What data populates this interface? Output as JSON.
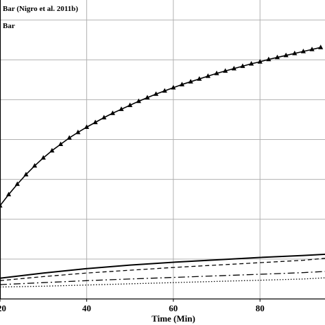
{
  "chart_data": {
    "type": "line",
    "xlabel": "Time (Min)",
    "ylabel": "",
    "xlim": [
      20,
      95
    ],
    "ylim": [
      0,
      7.5
    ],
    "x_ticks": [
      20,
      40,
      60,
      80
    ],
    "grid": true,
    "legend": {
      "placement": "top-left",
      "entries": [
        "Bar (Nigro et al. 2011b)",
        "Bar"
      ]
    },
    "series": [
      {
        "name": "Bar (Nigro et al. 2011b)",
        "style": "solid-triangle",
        "x": [
          20,
          22,
          24,
          26,
          28,
          30,
          32,
          34,
          36,
          38,
          40,
          42,
          44,
          46,
          48,
          50,
          52,
          54,
          56,
          58,
          60,
          62,
          64,
          66,
          68,
          70,
          72,
          74,
          76,
          78,
          80,
          82,
          84,
          86,
          88,
          90,
          92,
          94
        ],
        "y": [
          2.34,
          2.62,
          2.88,
          3.12,
          3.34,
          3.54,
          3.72,
          3.88,
          4.04,
          4.18,
          4.31,
          4.43,
          4.55,
          4.66,
          4.76,
          4.86,
          4.96,
          5.05,
          5.14,
          5.22,
          5.3,
          5.38,
          5.45,
          5.52,
          5.59,
          5.66,
          5.72,
          5.78,
          5.84,
          5.9,
          5.95,
          6.01,
          6.06,
          6.11,
          6.16,
          6.21,
          6.26,
          6.31
        ]
      },
      {
        "name": "Bar",
        "style": "solid",
        "x": [
          20,
          30,
          40,
          50,
          60,
          70,
          80,
          90,
          95
        ],
        "y": [
          0.52,
          0.65,
          0.76,
          0.85,
          0.92,
          0.98,
          1.04,
          1.09,
          1.12
        ]
      },
      {
        "style": "dashed",
        "x": [
          20,
          30,
          40,
          50,
          60,
          70,
          80,
          90,
          95
        ],
        "y": [
          0.46,
          0.56,
          0.65,
          0.72,
          0.79,
          0.85,
          0.91,
          0.97,
          1.02
        ]
      },
      {
        "style": "dash-dot",
        "x": [
          20,
          30,
          40,
          50,
          60,
          70,
          80,
          90,
          95
        ],
        "y": [
          0.36,
          0.41,
          0.46,
          0.5,
          0.54,
          0.58,
          0.62,
          0.66,
          0.69
        ]
      },
      {
        "style": "dotted",
        "x": [
          20,
          30,
          40,
          50,
          60,
          70,
          80,
          90,
          95
        ],
        "y": [
          0.3,
          0.32,
          0.35,
          0.38,
          0.41,
          0.44,
          0.47,
          0.5,
          0.53
        ]
      }
    ]
  }
}
